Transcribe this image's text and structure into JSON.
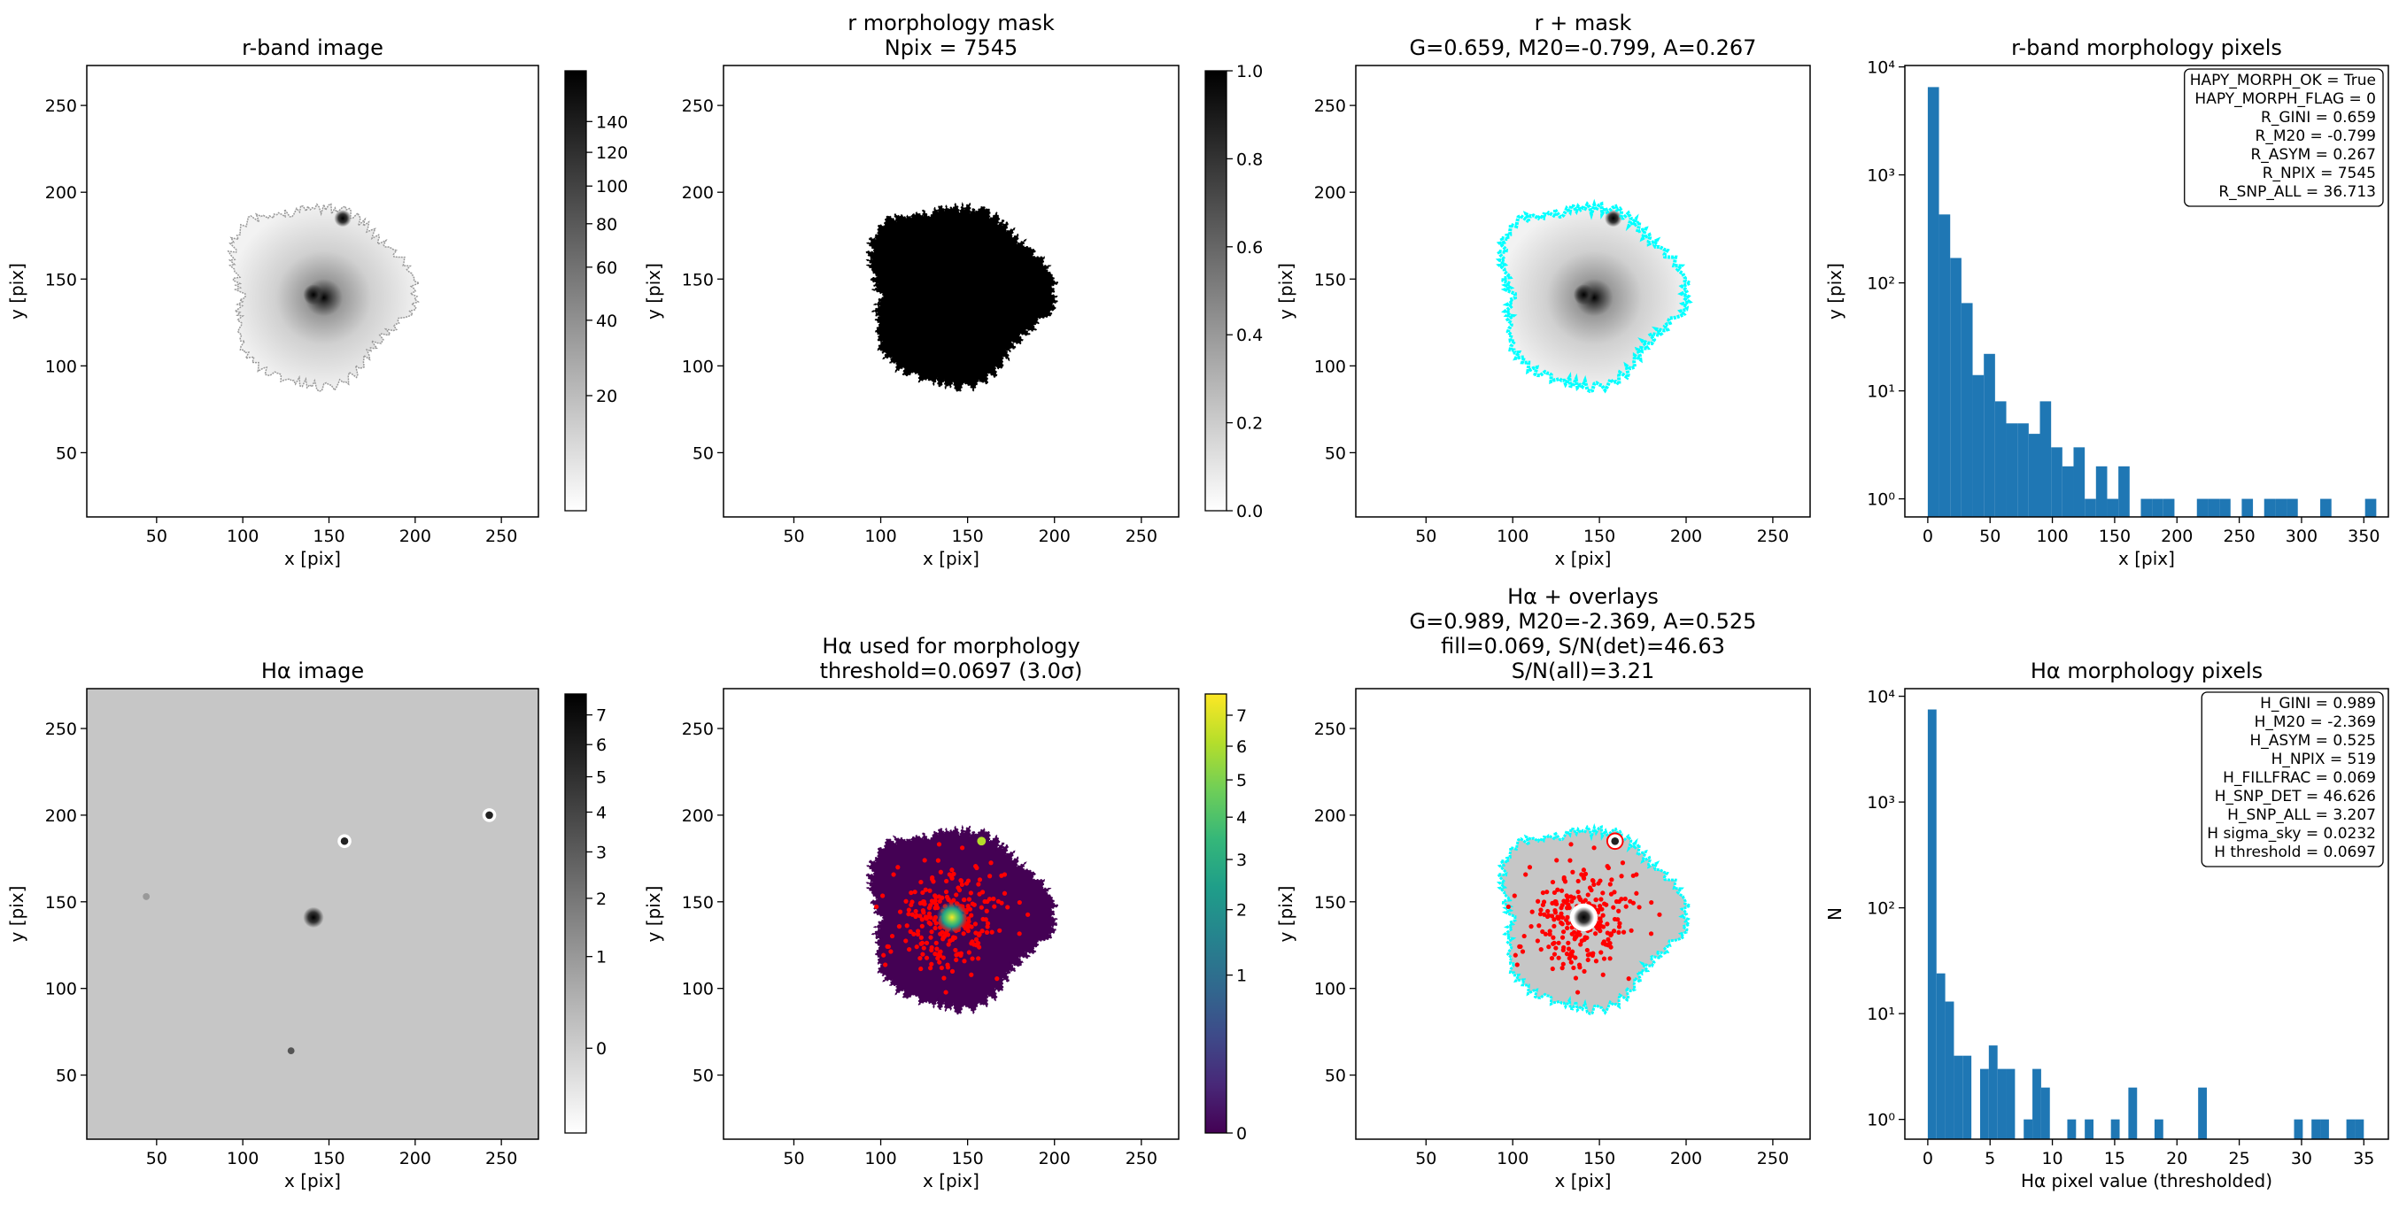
{
  "chart_data": [
    {
      "type": "image",
      "title": "r-band image",
      "xlabel": "x [pix]",
      "ylabel": "y [pix]",
      "cmap": "gray_r",
      "contour_color": "#999999",
      "xlim": [
        9.5,
        271.5
      ],
      "ylim": [
        13,
        273
      ],
      "xticks": [
        50,
        100,
        150,
        200,
        250
      ],
      "yticks": [
        50,
        100,
        150,
        200,
        250
      ],
      "colorbar": {
        "clim": [
          8.5,
          176.5
        ],
        "stretch": "sqrt",
        "cmap": "gray_r",
        "ticks": [
          20,
          40,
          60,
          80,
          100,
          120,
          140
        ]
      }
    },
    {
      "type": "image",
      "title": [
        "r morphology mask",
        "Npix = 7545"
      ],
      "xlabel": "x [pix]",
      "ylabel": "y [pix]",
      "cmap": "gray_r",
      "xlim": [
        9.5,
        271.5
      ],
      "ylim": [
        13,
        273
      ],
      "xticks": [
        50,
        100,
        150,
        200,
        250
      ],
      "yticks": [
        50,
        100,
        150,
        200,
        250
      ],
      "colorbar": {
        "clim": [
          0,
          1
        ],
        "stretch": "linear",
        "cmap": "gray_r",
        "ticks": [
          {
            "value": 0,
            "label": "0.0"
          },
          0.2,
          0.4,
          0.6,
          0.8,
          {
            "value": 1,
            "label": "1.0"
          }
        ]
      }
    },
    {
      "type": "image",
      "title": [
        "r + mask",
        "G=0.659, M20=-0.799, A=0.267"
      ],
      "xlabel": "x [pix]",
      "ylabel": "y [pix]",
      "cmap": "gray_r",
      "contour_color": "#00ffff",
      "xlim": [
        9.5,
        271.5
      ],
      "ylim": [
        13,
        273
      ],
      "xticks": [
        50,
        100,
        150,
        200,
        250
      ],
      "yticks": [
        50,
        100,
        150,
        200,
        250
      ]
    },
    {
      "type": "histogram",
      "title": "r-band morphology pixels",
      "xlabel": "x [pix]",
      "ylabel": "y [pix]",
      "color": "#1f77b4",
      "yscale": "log",
      "bins": [
        0,
        9,
        18,
        27,
        36,
        45,
        54,
        63,
        72,
        81,
        90,
        99,
        108,
        117,
        126,
        135,
        144,
        153,
        162,
        171,
        180,
        189,
        198,
        207,
        216,
        225,
        234,
        243,
        252,
        261,
        270,
        279,
        288,
        297,
        306,
        315,
        324,
        333,
        342,
        351,
        360
      ],
      "counts": [
        6500,
        430,
        170,
        65,
        14,
        22,
        8,
        5,
        5,
        4,
        8,
        3,
        2,
        3,
        1,
        2,
        1,
        2,
        0,
        1,
        1,
        1,
        0,
        0,
        1,
        1,
        1,
        0,
        1,
        0,
        1,
        1,
        1,
        0,
        0,
        1,
        0,
        0,
        0,
        1
      ],
      "xlim": [
        -18.4,
        369.7
      ],
      "ylim": [
        0.68,
        10300
      ],
      "xticks": [
        0,
        50,
        100,
        150,
        200,
        250,
        300,
        350
      ],
      "yticks": [
        {
          "value": 1,
          "label": "10⁰"
        },
        {
          "value": 10,
          "label": "10¹"
        },
        {
          "value": 100,
          "label": "10²"
        },
        {
          "value": 1000,
          "label": "10³"
        },
        {
          "value": 10000,
          "label": "10⁴"
        }
      ],
      "annotation": [
        "HAPY_MORPH_OK = True",
        "HAPY_MORPH_FLAG = 0",
        "R_GINI = 0.659",
        "R_M20 = -0.799",
        "R_ASYM = 0.267",
        "R_NPIX = 7545",
        "R_SNP_ALL = 36.713"
      ]
    },
    {
      "type": "image",
      "title": "Hα image",
      "xlabel": "x [pix]",
      "ylabel": "y [pix]",
      "cmap": "gray_r",
      "xlim": [
        9.5,
        271.5
      ],
      "ylim": [
        13,
        273
      ],
      "xticks": [
        50,
        100,
        150,
        200,
        250
      ],
      "yticks": [
        50,
        100,
        150,
        200,
        250
      ],
      "colorbar": {
        "clim": [
          -0.3,
          7.75
        ],
        "stretch": "sqrt",
        "cmap": "gray_r",
        "ticks": [
          0,
          1,
          2,
          3,
          4,
          5,
          6,
          7
        ]
      }
    },
    {
      "type": "image",
      "title": [
        "Hα used for morphology",
        "threshold=0.0697 (3.0σ)"
      ],
      "xlabel": "x [pix]",
      "ylabel": "y [pix]",
      "cmap": "viridis",
      "points_color": "#ff0000",
      "xlim": [
        9.5,
        271.5
      ],
      "ylim": [
        13,
        273
      ],
      "xticks": [
        50,
        100,
        150,
        200,
        250
      ],
      "yticks": [
        50,
        100,
        150,
        200,
        250
      ],
      "colorbar": {
        "clim": [
          0,
          7.73
        ],
        "stretch": "sqrt",
        "cmap": "viridis",
        "ticks": [
          0,
          1,
          2,
          3,
          4,
          5,
          6,
          7
        ]
      }
    },
    {
      "type": "image",
      "title": [
        "Hα + overlays",
        "G=0.989, M20=-2.369, A=0.525",
        "fill=0.069, S/N(det)=46.63",
        "S/N(all)=3.21"
      ],
      "xlabel": "x [pix]",
      "ylabel": "y [pix]",
      "cmap": "gray_r",
      "contour_color": "#00ffff",
      "points_color": "#ff0000",
      "xlim": [
        9.5,
        271.5
      ],
      "ylim": [
        13,
        273
      ],
      "xticks": [
        50,
        100,
        150,
        200,
        250
      ],
      "yticks": [
        50,
        100,
        150,
        200,
        250
      ]
    },
    {
      "type": "histogram",
      "title": "Hα morphology pixels",
      "xlabel": "Hα pixel value (thresholded)",
      "ylabel": "N",
      "color": "#1f77b4",
      "yscale": "log",
      "bins": [
        0,
        0.7,
        1.4,
        2.1,
        2.8,
        3.5,
        4.2,
        4.9,
        5.6,
        6.3,
        7,
        7.7,
        8.4,
        9.1,
        9.8,
        10.5,
        11.2,
        11.9,
        12.6,
        13.3,
        14,
        14.7,
        15.4,
        16.1,
        16.8,
        17.5,
        18.2,
        18.9,
        19.6,
        20.3,
        21,
        21.7,
        22.4,
        23.1,
        23.8,
        24.5,
        25.2,
        25.9,
        26.6,
        27.3,
        28,
        28.7,
        29.4,
        30.1,
        30.8,
        31.5,
        32.2,
        32.9,
        33.6,
        34.3,
        35
      ],
      "counts": [
        7500,
        24,
        13,
        4,
        4,
        0,
        3,
        5,
        3,
        3,
        0,
        1,
        3,
        2,
        0,
        0,
        1,
        0,
        1,
        0,
        0,
        1,
        0,
        2,
        0,
        0,
        1,
        0,
        0,
        0,
        0,
        2,
        0,
        0,
        0,
        0,
        0,
        0,
        0,
        0,
        0,
        0,
        1,
        0,
        1,
        1,
        0,
        0,
        1,
        1
      ],
      "xlim": [
        -1.84,
        36.97
      ],
      "ylim": [
        0.65,
        11800
      ],
      "xticks": [
        0,
        5,
        10,
        15,
        20,
        25,
        30,
        35
      ],
      "yticks": [
        {
          "value": 1,
          "label": "10⁰"
        },
        {
          "value": 10,
          "label": "10¹"
        },
        {
          "value": 100,
          "label": "10²"
        },
        {
          "value": 1000,
          "label": "10³"
        },
        {
          "value": 10000,
          "label": "10⁴"
        }
      ],
      "annotation": [
        "H_GINI = 0.989",
        "H_M20 = -2.369",
        "H_ASYM = 0.525",
        "H_NPIX = 519",
        "H_FILLFRAC = 0.069",
        "H_SNP_DET = 46.626",
        "H_SNP_ALL = 3.207",
        "H sigma_sky = 0.0232",
        "H threshold = 0.0697"
      ]
    }
  ]
}
